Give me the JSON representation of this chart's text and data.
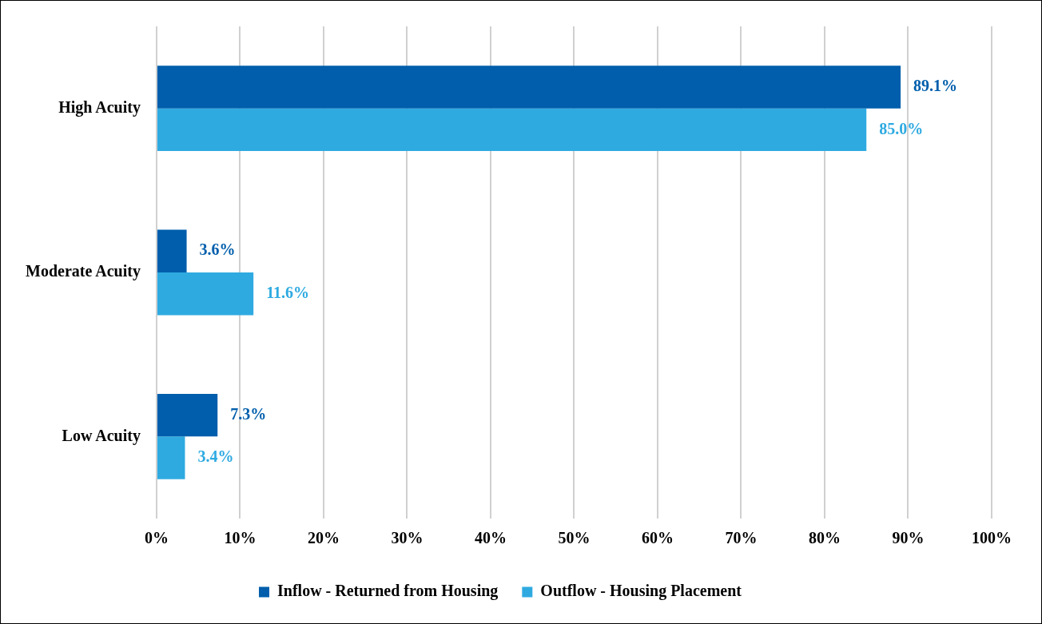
{
  "chart_data": {
    "type": "bar",
    "orientation": "horizontal",
    "categories": [
      "High Acuity",
      "Moderate Acuity",
      "Low Acuity"
    ],
    "series": [
      {
        "name": "Inflow - Returned from Housing",
        "color": "#005eac",
        "values": [
          89.1,
          3.6,
          7.3
        ],
        "value_labels": [
          "89.1%",
          "3.6%",
          "7.3%"
        ]
      },
      {
        "name": "Outflow - Housing Placement",
        "color": "#2eaae1",
        "values": [
          85.0,
          11.6,
          3.4
        ],
        "value_labels": [
          "85.0%",
          "11.6%",
          "3.4%"
        ]
      }
    ],
    "xlim": [
      0,
      100
    ],
    "xticks": [
      {
        "value": 0,
        "label": "0%"
      },
      {
        "value": 10,
        "label": "10%"
      },
      {
        "value": 20,
        "label": "20%"
      },
      {
        "value": 30,
        "label": "30%"
      },
      {
        "value": 40,
        "label": "40%"
      },
      {
        "value": 50,
        "label": "50%"
      },
      {
        "value": 60,
        "label": "60%"
      },
      {
        "value": 70,
        "label": "70%"
      },
      {
        "value": 80,
        "label": "80%"
      },
      {
        "value": 90,
        "label": "90%"
      },
      {
        "value": 100,
        "label": "100%"
      }
    ],
    "grid": "x",
    "legend": "bottom"
  }
}
